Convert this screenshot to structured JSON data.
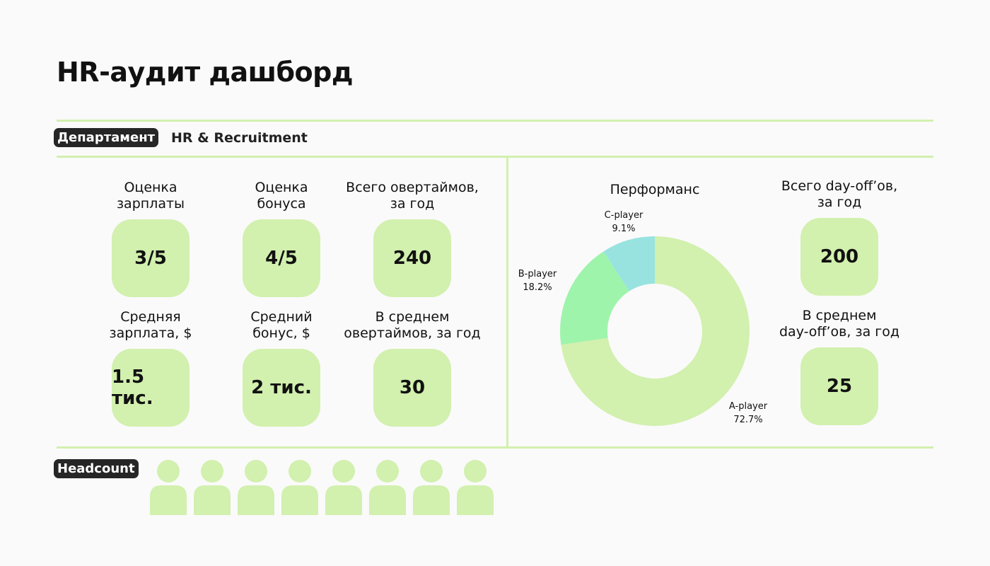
{
  "title": "HR-аудит дашборд",
  "filter": {
    "label": "Департамент",
    "value": "HR & Recruitment"
  },
  "metrics": [
    {
      "label": "Оценка\nзарплаты",
      "value": "3/5"
    },
    {
      "label": "Оценка\nбонуса",
      "value": "4/5"
    },
    {
      "label": "Всего овертаймов,\nза год",
      "value": "240"
    },
    {
      "label": "Средняя\nзарплата, $",
      "value": "1.5 тис."
    },
    {
      "label": "Средний\nбонус, $",
      "value": "2 тис."
    },
    {
      "label": "В среднем\nовертаймов, за год",
      "value": "30"
    },
    {
      "label": "Всего day-off’ов,\nза год",
      "value": "200"
    },
    {
      "label": "В среднем\nday-off’ов, за год",
      "value": "25"
    }
  ],
  "chart_data": {
    "type": "pie",
    "donut": true,
    "title": "Перформанс",
    "categories": [
      "A-player",
      "B-player",
      "C-player"
    ],
    "values": [
      72.7,
      18.2,
      9.1
    ],
    "labels": [
      "72.7%",
      "18.2%",
      "9.1%"
    ],
    "colors": [
      "#d2f0ae",
      "#9ef4ab",
      "#98e3e0"
    ]
  },
  "headcount": {
    "label": "Headcount",
    "count": 8,
    "color": "#d2f0ae"
  }
}
